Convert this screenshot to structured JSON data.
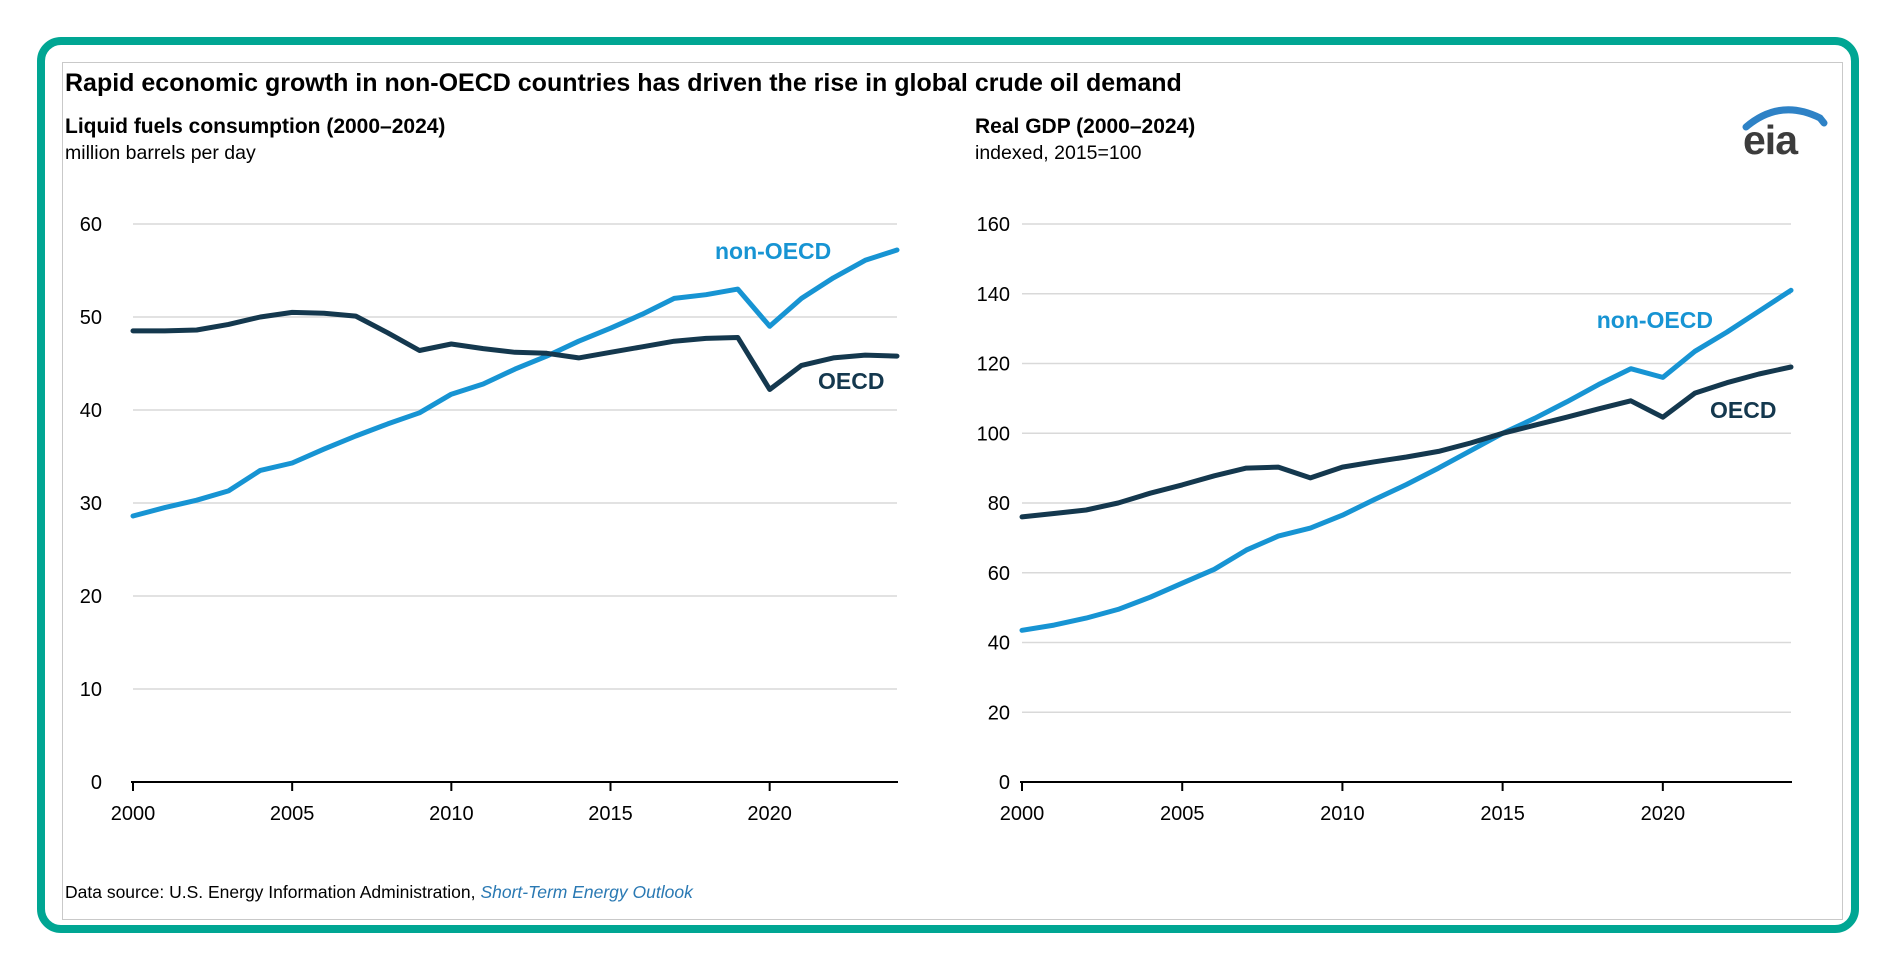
{
  "colors": {
    "accent_teal": "#00a693",
    "line_blue": "#1794d3",
    "line_navy": "#14384e",
    "link_blue": "#2a79b3",
    "logo_arc_blue": "#2e82c6",
    "logo_text_gray": "#3c3c3c",
    "gridline_gray": "#d9d9d9"
  },
  "header": {
    "title": "Rapid economic growth in non-OECD countries has driven the rise in global crude oil demand",
    "logo_text": "eia"
  },
  "footer": {
    "prefix": "Data source: U.S. Energy Information Administration,",
    "link_text": "Short-Term Energy Outlook"
  },
  "chart_data": [
    {
      "type": "line",
      "title": "Liquid fuels consumption (2000–2024)",
      "units": "million barrels per day",
      "x": [
        2000,
        2001,
        2002,
        2003,
        2004,
        2005,
        2006,
        2007,
        2008,
        2009,
        2010,
        2011,
        2012,
        2013,
        2014,
        2015,
        2016,
        2017,
        2018,
        2019,
        2020,
        2021,
        2022,
        2023,
        2024
      ],
      "xlim": [
        2000,
        2024
      ],
      "xticks": [
        2000,
        2005,
        2010,
        2015,
        2020
      ],
      "ylim": [
        0,
        60
      ],
      "yticks": [
        0,
        10,
        20,
        30,
        40,
        50,
        60
      ],
      "grid": "horizontal",
      "legend": "inline-labels",
      "series": [
        {
          "name": "non-OECD",
          "color": "#1794d3",
          "values": [
            28.6,
            29.5,
            30.3,
            31.3,
            33.5,
            34.3,
            35.8,
            37.2,
            38.5,
            39.7,
            41.7,
            42.8,
            44.4,
            45.8,
            47.4,
            48.8,
            50.3,
            52.0,
            52.4,
            53.0,
            49.0,
            52.0,
            54.2,
            56.1,
            57.2
          ]
        },
        {
          "name": "OECD",
          "color": "#14384e",
          "values": [
            48.5,
            48.5,
            48.6,
            49.2,
            50.0,
            50.5,
            50.4,
            50.1,
            48.3,
            46.4,
            47.1,
            46.6,
            46.2,
            46.1,
            45.6,
            46.2,
            46.8,
            47.4,
            47.7,
            47.8,
            42.2,
            44.8,
            45.6,
            45.9,
            45.8
          ]
        }
      ]
    },
    {
      "type": "line",
      "title": "Real GDP (2000–2024)",
      "units": "indexed, 2015=100",
      "x": [
        2000,
        2001,
        2002,
        2003,
        2004,
        2005,
        2006,
        2007,
        2008,
        2009,
        2010,
        2011,
        2012,
        2013,
        2014,
        2015,
        2016,
        2017,
        2018,
        2019,
        2020,
        2021,
        2022,
        2023,
        2024
      ],
      "xlim": [
        2000,
        2024
      ],
      "xticks": [
        2000,
        2005,
        2010,
        2015,
        2020
      ],
      "ylim": [
        0,
        160
      ],
      "yticks": [
        0,
        20,
        40,
        60,
        80,
        100,
        120,
        140,
        160
      ],
      "grid": "horizontal",
      "legend": "inline-labels",
      "series": [
        {
          "name": "non-OECD",
          "color": "#1794d3",
          "values": [
            43.5,
            45.0,
            47.0,
            49.5,
            53.0,
            57.0,
            61.0,
            66.5,
            70.5,
            72.8,
            76.5,
            81.0,
            85.3,
            90.0,
            95.0,
            100.0,
            104.3,
            109.0,
            114.0,
            118.5,
            116.0,
            123.5,
            129.0,
            135.0,
            141.0
          ]
        },
        {
          "name": "OECD",
          "color": "#14384e",
          "values": [
            76.0,
            77.0,
            78.0,
            80.0,
            82.8,
            85.2,
            87.8,
            90.0,
            90.3,
            87.2,
            90.3,
            91.8,
            93.2,
            94.8,
            97.2,
            100.0,
            102.3,
            104.6,
            107.0,
            109.3,
            104.6,
            111.5,
            114.5,
            117.0,
            119.0
          ]
        }
      ]
    }
  ]
}
